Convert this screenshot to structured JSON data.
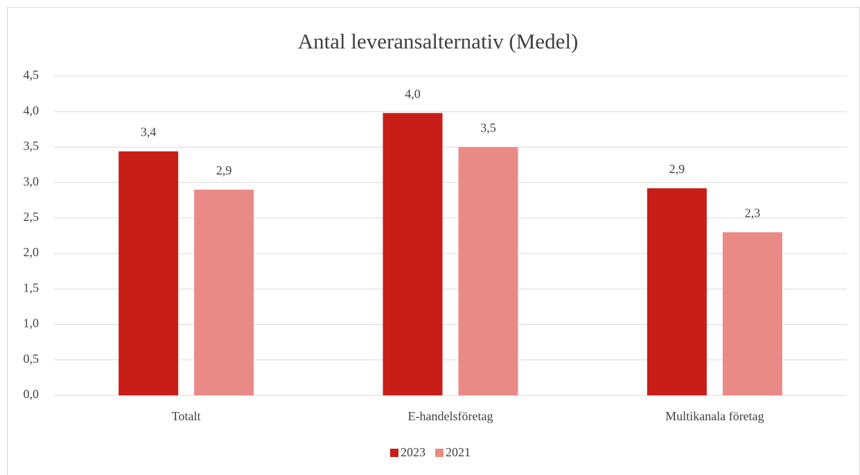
{
  "chart_data": {
    "type": "bar",
    "title": "Antal leveransalternativ (Medel)",
    "categories": [
      "Totalt",
      "E-handelsföretag",
      "Multikanala företag"
    ],
    "series": [
      {
        "name": "2023",
        "color": "#c81e17",
        "values": [
          3.44,
          3.98,
          2.92
        ],
        "value_labels": [
          "3,4",
          "4,0",
          "2,9"
        ]
      },
      {
        "name": "2021",
        "color": "#e98a87",
        "values": [
          2.9,
          3.5,
          2.3
        ],
        "value_labels": [
          "2,9",
          "3,5",
          "2,3"
        ]
      }
    ],
    "ylim": [
      0,
      4.5
    ],
    "yticks": [
      {
        "value": 0,
        "label": "0,0"
      },
      {
        "value": 0.5,
        "label": "0,5"
      },
      {
        "value": 1,
        "label": "1,0"
      },
      {
        "value": 1.5,
        "label": "1,5"
      },
      {
        "value": 2,
        "label": "2,0"
      },
      {
        "value": 2.5,
        "label": "2,5"
      },
      {
        "value": 3,
        "label": "3,0"
      },
      {
        "value": 3.5,
        "label": "3,5"
      },
      {
        "value": 4,
        "label": "4,0"
      },
      {
        "value": 4.5,
        "label": "4,5"
      }
    ],
    "grid": true,
    "legend": "bottom"
  }
}
